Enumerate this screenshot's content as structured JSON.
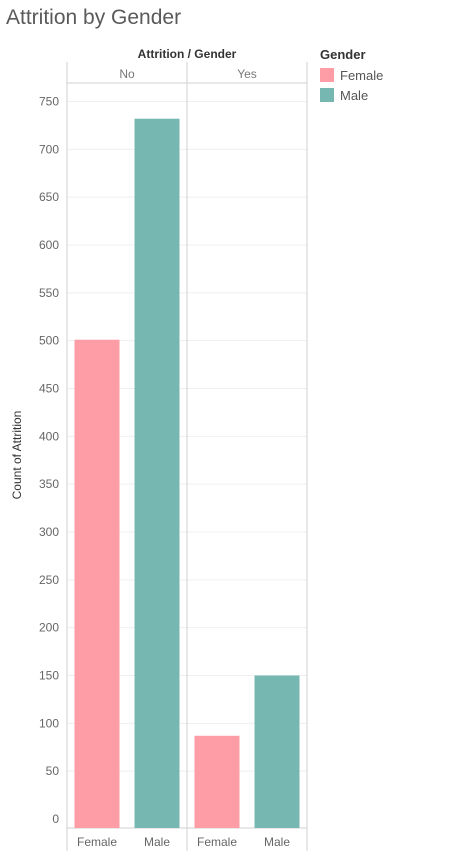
{
  "chart_data": {
    "type": "bar",
    "title": "Attrition by Gender",
    "header_label": "Attrition  /  Gender",
    "ylabel": "Count of Attrition",
    "ylim": [
      0,
      760
    ],
    "yticks": [
      0,
      50,
      100,
      150,
      200,
      250,
      300,
      350,
      400,
      450,
      500,
      550,
      600,
      650,
      700,
      750
    ],
    "groups": [
      "No",
      "Yes"
    ],
    "categories": [
      "Female",
      "Male"
    ],
    "series": [
      {
        "name": "Female",
        "color": "#ff9da7",
        "values": [
          501,
          87
        ]
      },
      {
        "name": "Male",
        "color": "#76b7b2",
        "values": [
          732,
          150
        ]
      }
    ],
    "legend": {
      "title": "Gender",
      "position": "top-right"
    },
    "grid": true
  }
}
